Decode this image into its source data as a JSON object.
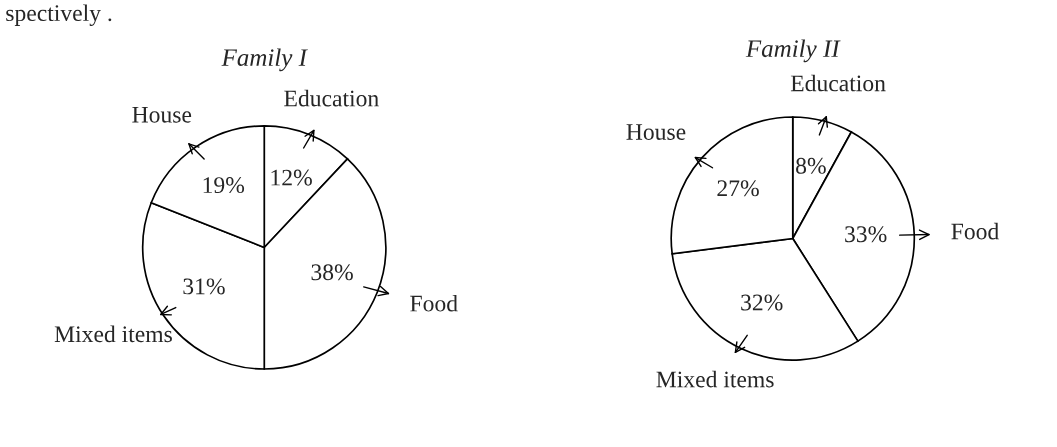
{
  "chart_data": [
    {
      "type": "pie",
      "title": "Family I",
      "categories": [
        "Education",
        "Food",
        "Mixed items",
        "House"
      ],
      "values": [
        12,
        38,
        31,
        19
      ],
      "value_labels": [
        "12%",
        "38%",
        "31%",
        "19%"
      ],
      "colors": [
        "#ffffff",
        "#ffffff",
        "#ffffff",
        "#ffffff"
      ],
      "annotations": [
        "spectively ."
      ]
    },
    {
      "type": "pie",
      "title": "Family II",
      "categories": [
        "Education",
        "Food",
        "Mixed items",
        "House"
      ],
      "values": [
        8,
        33,
        32,
        27
      ],
      "value_labels": [
        "8%",
        "33%",
        "32%",
        "27%"
      ],
      "colors": [
        "#ffffff",
        "#ffffff",
        "#ffffff",
        "#ffffff"
      ]
    }
  ]
}
